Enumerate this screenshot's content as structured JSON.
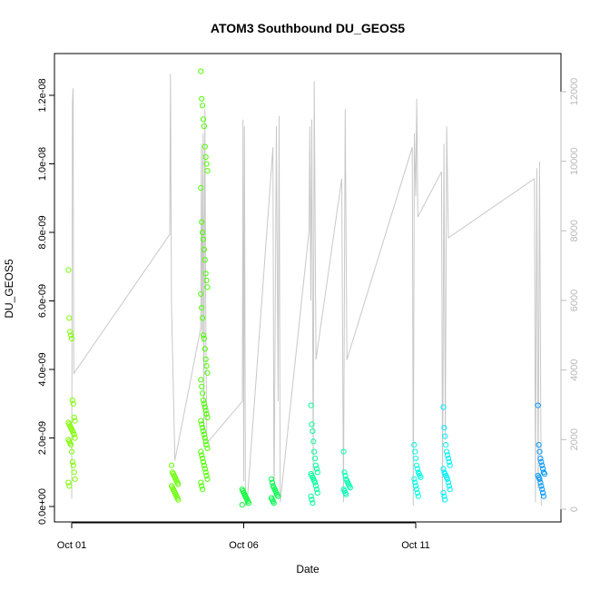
{
  "chart_data": {
    "type": "scatter",
    "title": "ATOM3 Southbound DU_GEOS5",
    "xlabel": "Date",
    "ylabel": "DU_GEOS5",
    "x_ticks": [
      {
        "day": 1,
        "label": "Oct 01"
      },
      {
        "day": 6,
        "label": "Oct 06"
      },
      {
        "day": 11,
        "label": "Oct 11"
      }
    ],
    "xlim_days": [
      1,
      15.2
    ],
    "y_left": {
      "lim": [
        0,
        1.3e-08
      ],
      "ticks": [
        {
          "value": 0,
          "label": "0.0e+00"
        },
        {
          "value": 2e-09,
          "label": "2.0e-09"
        },
        {
          "value": 4e-09,
          "label": "4.0e-09"
        },
        {
          "value": 6e-09,
          "label": "6.0e-09"
        },
        {
          "value": 8e-09,
          "label": "8.0e-09"
        },
        {
          "value": 1e-08,
          "label": "1.0e-08"
        },
        {
          "value": 1.2e-08,
          "label": "1.2e-08"
        }
      ]
    },
    "y_right": {
      "lim": [
        0,
        12800
      ],
      "ticks": [
        {
          "value": 0,
          "label": "0"
        },
        {
          "value": 2000,
          "label": "2000"
        },
        {
          "value": 4000,
          "label": "4000"
        },
        {
          "value": 6000,
          "label": "6000"
        },
        {
          "value": 8000,
          "label": "8000"
        },
        {
          "value": 10000,
          "label": "10000"
        },
        {
          "value": 12000,
          "label": "12000"
        }
      ],
      "color": "#bebebe"
    },
    "point_groups": [
      {
        "day": 1.0,
        "color": "#7fff00",
        "values": [
          6.9e-09,
          5.5e-09,
          5.1e-09,
          5e-09,
          4.9e-09,
          3.1e-09,
          3e-09,
          2.6e-09,
          2.5e-09,
          2.45e-09,
          2.4e-09,
          2.35e-09,
          2.3e-09,
          2.25e-09,
          2.2e-09,
          2.15e-09,
          2.1e-09,
          2e-09,
          1.95e-09,
          1.9e-09,
          1.85e-09,
          1.8e-09,
          1.6e-09,
          1.3e-09,
          1.2e-09,
          1e-09,
          8e-10,
          7e-10,
          6e-10
        ]
      },
      {
        "day": 4.0,
        "color": "#66ff00",
        "values": [
          1.2e-09,
          1e-09,
          9.5e-10,
          9e-10,
          8.5e-10,
          8e-10,
          7.5e-10,
          7e-10,
          6.5e-10,
          6e-10,
          5.5e-10,
          5e-10,
          4.5e-10,
          4e-10,
          3.5e-10,
          3e-10,
          2.5e-10,
          2e-10
        ]
      },
      {
        "day": 4.85,
        "color": "#4cff00",
        "values": [
          1.27e-08,
          1.19e-08,
          1.17e-08,
          1.13e-08,
          1.11e-08,
          1.05e-08,
          1.02e-08,
          1e-08,
          9.8e-09,
          9.3e-09,
          8.3e-09,
          8e-09,
          7.8e-09,
          7.5e-09,
          7.2e-09,
          6.8e-09,
          6.6e-09,
          6.4e-09,
          6.2e-09,
          5.8e-09,
          5.5e-09,
          5e-09,
          4.9e-09,
          4.6e-09,
          4.3e-09,
          4.1e-09,
          3.9e-09,
          3.7e-09,
          3.5e-09,
          3.3e-09,
          3.1e-09,
          3e-09,
          2.9e-09,
          2.8e-09,
          2.7e-09,
          2.6e-09,
          2.5e-09,
          2.4e-09,
          2.3e-09,
          2.2e-09,
          2.1e-09,
          2e-09,
          1.9e-09,
          1.8e-09,
          1.7e-09,
          1.6e-09,
          1.5e-09,
          1.4e-09,
          1.3e-09,
          1.2e-09,
          1.1e-09,
          1e-09,
          9e-10,
          8e-10,
          7e-10,
          6e-10,
          5e-10
        ]
      },
      {
        "day": 6.05,
        "color": "#00ff33",
        "values": [
          5e-10,
          4.5e-10,
          4e-10,
          3.5e-10,
          3e-10,
          2.5e-10,
          2e-10,
          1.5e-10,
          1e-10,
          5e-11
        ]
      },
      {
        "day": 6.9,
        "color": "#00ff4c",
        "values": [
          8e-10,
          7e-10,
          6e-10,
          5.5e-10,
          5e-10,
          4.5e-10,
          4e-10,
          3.5e-10,
          3e-10,
          2.5e-10,
          2e-10,
          1.5e-10,
          1e-10
        ]
      },
      {
        "day": 8.05,
        "color": "#00ff99",
        "values": [
          2.95e-09,
          2.4e-09,
          2.2e-09,
          1.9e-09,
          1.6e-09,
          1.4e-09,
          1.2e-09,
          1.1e-09,
          1e-09,
          9.5e-10,
          9e-10,
          8.5e-10,
          8e-10,
          7.5e-10,
          7e-10,
          6e-10,
          5e-10,
          4e-10,
          3e-10,
          2e-10,
          1e-10
        ]
      },
      {
        "day": 9.0,
        "color": "#00ffb2",
        "values": [
          1.6e-09,
          1e-09,
          9e-10,
          8e-10,
          7.5e-10,
          7e-10,
          6.5e-10,
          6e-10,
          5.5e-10,
          5e-10,
          4.5e-10,
          4e-10,
          3.5e-10
        ]
      },
      {
        "day": 11.05,
        "color": "#00ffe5",
        "values": [
          1.8e-09,
          1.6e-09,
          1.4e-09,
          1.2e-09,
          1.1e-09,
          1e-09,
          9.5e-10,
          9e-10,
          8.5e-10,
          8e-10,
          7e-10,
          6e-10,
          5e-10,
          4e-10,
          3e-10
        ]
      },
      {
        "day": 11.9,
        "color": "#00f0ff",
        "values": [
          2.9e-09,
          2.3e-09,
          2.05e-09,
          1.8e-09,
          1.6e-09,
          1.5e-09,
          1.4e-09,
          1.3e-09,
          1.2e-09,
          1.1e-09,
          1e-09,
          9.5e-10,
          9e-10,
          8.5e-10,
          8e-10,
          7e-10,
          6e-10,
          5e-10,
          4e-10,
          3e-10,
          2e-10
        ]
      },
      {
        "day": 14.65,
        "color": "#0099ff",
        "values": [
          2.95e-09,
          1.8e-09,
          1.6e-09,
          1.4e-09,
          1.3e-09,
          1.2e-09,
          1.1e-09,
          1e-09,
          9.5e-10,
          9e-10,
          8.5e-10,
          8e-10,
          7e-10,
          6e-10,
          5e-10,
          4e-10,
          3e-10
        ]
      }
    ],
    "altitude_track": {
      "color": "#c8c8c8",
      "points": [
        [
          1.0,
          300
        ],
        [
          1.02,
          11700
        ],
        [
          1.04,
          12100
        ],
        [
          1.06,
          3900
        ],
        [
          3.85,
          7900
        ],
        [
          3.87,
          12500
        ],
        [
          3.9,
          5900
        ],
        [
          4.0,
          1400
        ],
        [
          4.75,
          5200
        ],
        [
          4.77,
          10500
        ],
        [
          4.79,
          4800
        ],
        [
          4.82,
          10800
        ],
        [
          4.84,
          1800
        ],
        [
          4.87,
          11500
        ],
        [
          4.9,
          5000
        ],
        [
          4.93,
          1900
        ],
        [
          5.96,
          3100
        ],
        [
          5.98,
          11200
        ],
        [
          6.0,
          800
        ],
        [
          6.02,
          11000
        ],
        [
          6.05,
          100
        ],
        [
          6.1,
          200
        ],
        [
          6.85,
          10400
        ],
        [
          6.88,
          100
        ],
        [
          6.95,
          11000
        ],
        [
          7.0,
          3100
        ],
        [
          7.03,
          11300
        ],
        [
          7.06,
          200
        ],
        [
          7.9,
          8000
        ],
        [
          7.92,
          11000
        ],
        [
          7.95,
          6000
        ],
        [
          7.98,
          11200
        ],
        [
          8.02,
          1000
        ],
        [
          8.05,
          12300
        ],
        [
          8.1,
          4300
        ],
        [
          8.85,
          9500
        ],
        [
          8.9,
          200
        ],
        [
          8.95,
          11500
        ],
        [
          9.0,
          4300
        ],
        [
          10.9,
          10400
        ],
        [
          10.93,
          100
        ],
        [
          10.96,
          10800
        ],
        [
          11.0,
          9000
        ],
        [
          11.03,
          11800
        ],
        [
          11.06,
          8400
        ],
        [
          11.75,
          9700
        ],
        [
          11.78,
          200
        ],
        [
          11.82,
          10500
        ],
        [
          11.86,
          2000
        ],
        [
          11.9,
          11000
        ],
        [
          11.95,
          7800
        ],
        [
          14.45,
          9500
        ],
        [
          14.48,
          200
        ],
        [
          14.52,
          9800
        ],
        [
          14.56,
          600
        ],
        [
          14.6,
          10000
        ],
        [
          14.65,
          100
        ]
      ]
    }
  }
}
